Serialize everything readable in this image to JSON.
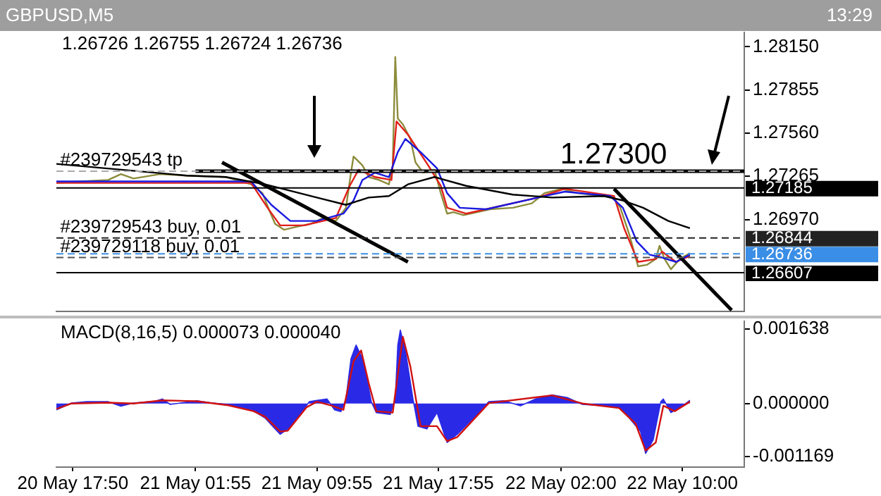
{
  "chart_data": [
    {
      "type": "line",
      "title": "GBPUSD,M5",
      "subtitle": "13:29",
      "xlim": [
        "--05-20T16:45",
        "--05-22T14:05"
      ],
      "ylim": [
        1.2634,
        1.2825
      ],
      "tick_labels": "y",
      "yticks": [
        {
          "value": 1.2815,
          "label": "1.28150"
        },
        {
          "value": 1.27855,
          "label": "1.27855"
        },
        {
          "value": 1.2756,
          "label": "1.27560"
        },
        {
          "value": 1.27265,
          "label": "1.27265"
        },
        {
          "value": 1.2697,
          "label": "1.26970"
        }
      ],
      "series": [
        {
          "color": "#8c8c3c",
          "x": [
            "--05-20T16:45",
            "--05-20T18:25",
            "--05-20T20:10",
            "--05-20T21:00",
            "--05-20T21:50",
            "--05-20T23:35",
            "--05-21T01:20",
            "--05-21T03:55",
            "--05-21T05:35",
            "--05-21T06:20",
            "--05-21T06:45",
            "--05-21T07:10",
            "--05-21T07:45",
            "--05-21T08:35",
            "--05-21T09:30",
            "--05-21T10:20",
            "--05-21T11:10",
            "--05-21T11:50",
            "--05-21T12:10",
            "--05-21T12:20",
            "--05-21T12:55",
            "--05-21T13:20",
            "--05-21T14:00",
            "--05-21T14:40",
            "--05-21T14:55",
            "--05-21T15:05",
            "--05-21T15:15",
            "--05-21T15:35",
            "--05-21T16:05",
            "--05-21T16:25",
            "--05-21T16:55",
            "--05-21T17:40",
            "--05-21T18:05",
            "--05-21T18:30",
            "--05-21T18:55",
            "--05-21T19:35",
            "--05-21T21:20",
            "--05-21T22:50",
            "--05-22T00:05",
            "--05-22T00:55",
            "--05-22T02:05",
            "--05-22T03:05",
            "--05-22T04:50",
            "--05-22T05:25",
            "--05-22T05:55",
            "--05-22T06:30",
            "--05-22T07:05",
            "--05-22T07:40",
            "--05-22T08:15",
            "--05-22T08:30",
            "--05-22T08:50",
            "--05-22T09:15",
            "--05-22T09:50",
            "--05-22T10:30"
          ],
          "values": [
            1.2722,
            1.2723,
            1.2724,
            1.2728,
            1.2725,
            1.2728,
            1.2727,
            1.2726,
            1.2721,
            1.2715,
            1.2704,
            1.2694,
            1.269,
            1.2692,
            1.2694,
            1.2698,
            1.2696,
            1.2705,
            1.2729,
            1.274,
            1.2734,
            1.2726,
            1.2724,
            1.2721,
            1.2734,
            1.2808,
            1.2766,
            1.2762,
            1.2752,
            1.2736,
            1.2729,
            1.2731,
            1.2715,
            1.2701,
            1.2702,
            1.27,
            1.2704,
            1.2705,
            1.2708,
            1.2715,
            1.2718,
            1.2715,
            1.2713,
            1.2713,
            1.2705,
            1.2687,
            1.2665,
            1.2666,
            1.267,
            1.2679,
            1.267,
            1.2663,
            1.267,
            1.2674
          ]
        },
        {
          "color": "#e0201a",
          "x": [
            "--05-20T16:45",
            "--05-21T05:35",
            "--05-21T06:40",
            "--05-21T07:30",
            "--05-21T09:05",
            "--05-21T11:10",
            "--05-21T12:05",
            "--05-21T12:40",
            "--05-21T13:45",
            "--05-21T14:50",
            "--05-21T15:10",
            "--05-21T15:55",
            "--05-21T17:15",
            "--05-21T18:05",
            "--05-21T18:30",
            "--05-21T19:45",
            "--05-22T00:30",
            "--05-22T02:15",
            "--05-22T05:30",
            "--05-22T06:10",
            "--05-22T07:05",
            "--05-22T08:15",
            "--05-22T08:40",
            "--05-22T09:35",
            "--05-22T10:30"
          ],
          "values": [
            1.2722,
            1.2722,
            1.2705,
            1.2693,
            1.2693,
            1.2698,
            1.272,
            1.2731,
            1.2726,
            1.2724,
            1.2764,
            1.2755,
            1.2734,
            1.272,
            1.2705,
            1.2701,
            1.2712,
            1.2718,
            1.2713,
            1.2691,
            1.2668,
            1.267,
            1.2675,
            1.2668,
            1.2672
          ]
        },
        {
          "color": "#1a1ae0",
          "x": [
            "--05-20T16:45",
            "--05-21T05:35",
            "--05-21T06:55",
            "--05-21T08:10",
            "--05-21T09:55",
            "--05-21T11:40",
            "--05-21T12:20",
            "--05-21T12:55",
            "--05-21T13:45",
            "--05-21T14:40",
            "--05-21T15:15",
            "--05-21T15:45",
            "--05-21T16:45",
            "--05-21T17:50",
            "--05-21T18:30",
            "--05-21T19:20",
            "--05-21T21:05",
            "--05-22T00:30",
            "--05-22T02:15",
            "--05-22T05:15",
            "--05-22T06:05",
            "--05-22T07:00",
            "--05-22T07:50",
            "--05-22T08:40",
            "--05-22T09:35",
            "--05-22T10:30"
          ],
          "values": [
            1.2723,
            1.2723,
            1.2707,
            1.2696,
            1.2696,
            1.2701,
            1.271,
            1.2724,
            1.2729,
            1.2726,
            1.2743,
            1.2752,
            1.2743,
            1.2732,
            1.2715,
            1.2705,
            1.2704,
            1.2712,
            1.2716,
            1.2713,
            1.2705,
            1.2682,
            1.2673,
            1.2671,
            1.2668,
            1.2673
          ]
        },
        {
          "color": "#000000",
          "x": [
            "--05-20T16:45",
            "--05-21T01:20",
            "--05-21T03:55",
            "--05-21T06:30",
            "--05-21T09:55",
            "--05-21T11:50",
            "--05-21T13:20",
            "--05-21T14:40",
            "--05-21T15:55",
            "--05-21T17:40",
            "--05-21T19:45",
            "--05-21T22:50",
            "--05-22T01:25",
            "--05-22T04:50",
            "--05-22T06:05",
            "--05-22T07:25",
            "--05-22T09:05",
            "--05-22T10:30"
          ],
          "values": [
            1.2735,
            1.2727,
            1.2726,
            1.2721,
            1.2712,
            1.2707,
            1.2712,
            1.2713,
            1.2721,
            1.2726,
            1.272,
            1.2714,
            1.2712,
            1.2713,
            1.271,
            1.2705,
            1.2696,
            1.2691
          ]
        },
        {
          "color": "#000000",
          "x": [
            "--05-21T03:40",
            "--05-21T15:55"
          ],
          "values": [
            1.2736,
            1.2668
          ]
        },
        {
          "color": "#000000",
          "x": [
            "--05-22T05:30",
            "--05-22T13:15"
          ],
          "values": [
            1.2718,
            1.2635
          ]
        },
        {
          "color": "#000000",
          "x": [
            "--05-21T01:55",
            "--05-22T14:05"
          ],
          "values": [
            1.273,
            1.273
          ]
        }
      ],
      "ref_lines": [
        {
          "axis": "y",
          "value": 1.273,
          "color": "#aaaaaa",
          "line_style": "dashed"
        },
        {
          "axis": "y",
          "value": 1.27185,
          "label": "1.27185",
          "color": "#000000"
        },
        {
          "axis": "y",
          "value": 1.26844,
          "label": "1.26844",
          "color": "#222222",
          "line_style": "dashed"
        },
        {
          "axis": "y",
          "value": 1.26736,
          "label": "1.26736",
          "color": "#3a8ee6",
          "line_style": "dashed"
        },
        {
          "axis": "y",
          "value": 1.2671,
          "color": "#555555",
          "line_style": "dashed"
        },
        {
          "axis": "y",
          "value": 1.26607,
          "label": "1.26607",
          "color": "#000000"
        }
      ],
      "annotations": [
        "1.26726 1.26755 1.26724 1.26736",
        "1.27300",
        {
          "text": "#239729543 tp",
          "x": "--05-20T17:00",
          "y": 1.273
        },
        {
          "text": "#239729543 buy, 0.01",
          "x": "--05-20T17:00",
          "y": 1.26844
        },
        {
          "text": "#239729118 buy, 0.01",
          "x": "--05-20T17:00",
          "y": 1.2671
        }
      ]
    },
    {
      "type": "area",
      "title": "MACD(8,16,5) 0.000073 0.000040",
      "xlim": [
        "--05-20T16:45",
        "--05-22T14:05"
      ],
      "ylim": [
        -0.0014,
        0.00182
      ],
      "xticks": [
        {
          "value": "--05-20T17:50",
          "label": "20 May 17:50"
        },
        {
          "value": "--05-21T01:55",
          "label": "21 May 01:55"
        },
        {
          "value": "--05-21T09:55",
          "label": "21 May 09:55"
        },
        {
          "value": "--05-21T17:55",
          "label": "21 May 17:55"
        },
        {
          "value": "--05-22T02:00",
          "label": "22 May 02:00"
        },
        {
          "value": "--05-22T10:00",
          "label": "22 May 10:00"
        }
      ],
      "yticks": [
        0.001638,
        {
          "value": 0,
          "label": "0.000000"
        },
        -0.001169
      ],
      "series": [
        {
          "color": "#2a2ae6",
          "x": [
            "--05-20T16:45",
            "--05-20T17:45",
            "--05-20T18:45",
            "--05-20T20:10",
            "--05-20T21:00",
            "--05-20T21:50",
            "--05-20T23:15",
            "--05-20T23:45",
            "--05-21T00:15",
            "--05-21T02:00",
            "--05-21T03:00",
            "--05-21T04:05",
            "--05-21T05:25",
            "--05-21T05:55",
            "--05-21T06:30",
            "--05-21T07:00",
            "--05-21T07:30",
            "--05-21T08:00",
            "--05-21T08:55",
            "--05-21T09:25",
            "--05-21T09:55",
            "--05-21T10:35",
            "--05-21T11:05",
            "--05-21T11:30",
            "--05-21T11:50",
            "--05-21T12:10",
            "--05-21T12:30",
            "--05-21T13:00",
            "--05-21T13:30",
            "--05-21T13:50",
            "--05-21T14:45",
            "--05-21T15:05",
            "--05-21T15:15",
            "--05-21T15:25",
            "--05-21T15:45",
            "--05-21T16:15",
            "--05-21T16:35",
            "--05-21T17:10",
            "--05-21T17:50",
            "--05-21T18:30",
            "--05-21T19:10",
            "--05-21T20:15",
            "--05-21T21:15",
            "--05-21T22:15",
            "--05-21T23:20",
            "--05-22T00:20",
            "--05-22T01:25",
            "--05-22T02:25",
            "--05-22T03:25",
            "--05-22T04:50",
            "--05-22T05:50",
            "--05-22T06:30",
            "--05-22T07:15",
            "--05-22T07:35",
            "--05-22T08:05",
            "--05-22T08:35",
            "--05-22T08:45",
            "--05-22T09:15",
            "--05-22T10:00",
            "--05-22T10:30"
          ],
          "values": [
            -0.00014,
            1e-05,
            4e-05,
            4e-05,
            -6e-05,
            1e-05,
            5e-05,
            0.0001,
            -2e-05,
            6e-05,
            1e-05,
            -2e-05,
            -0.00012,
            -0.0002,
            -0.00032,
            -0.0005,
            -0.00068,
            -0.00056,
            -0.0002,
            4e-05,
            7e-05,
            0.0001,
            -0.00014,
            -0.00018,
            0.0001,
            0.00099,
            0.00129,
            0.00093,
            4e-05,
            -0.0002,
            -0.00024,
            0.0001,
            0.00129,
            0.00162,
            0.00117,
            0.0001,
            -0.0005,
            -0.00056,
            -0.0002,
            -0.00086,
            -0.00068,
            -0.00032,
            4e-05,
            6e-05,
            -5e-05,
            0.0001,
            0.00019,
            0.00013,
            -2e-05,
            -5e-05,
            -8e-05,
            -0.00032,
            -0.00062,
            -0.0011,
            -0.0008,
            4e-05,
            0.0001,
            -0.0002,
            -6e-05,
            7e-05
          ]
        },
        {
          "type": "line",
          "color": "#d01010",
          "x": [
            "--05-20T16:45",
            "--05-20T17:45",
            "--05-20T20:10",
            "--05-20T21:50",
            "--05-20T23:45",
            "--05-21T02:00",
            "--05-21T04:05",
            "--05-21T05:45",
            "--05-21T06:30",
            "--05-21T07:30",
            "--05-21T08:00",
            "--05-21T09:15",
            "--05-21T09:55",
            "--05-21T10:55",
            "--05-21T11:40",
            "--05-21T12:20",
            "--05-21T12:50",
            "--05-21T13:20",
            "--05-21T13:50",
            "--05-21T14:55",
            "--05-21T15:35",
            "--05-21T16:05",
            "--05-21T16:45",
            "--05-21T17:50",
            "--05-21T18:30",
            "--05-21T19:10",
            "--05-21T21:15",
            "--05-22T01:25",
            "--05-22T03:25",
            "--05-22T05:50",
            "--05-22T06:55",
            "--05-22T07:35",
            "--05-22T08:15",
            "--05-22T08:45",
            "--05-22T09:30",
            "--05-22T10:30"
          ],
          "values": [
            -0.00012,
            0,
            2e-05,
            0,
            7e-05,
            5e-05,
            -4e-05,
            -0.00017,
            -0.00029,
            -0.00062,
            -0.0006,
            -8e-05,
            4e-05,
            -5e-05,
            -0.00014,
            0.00093,
            0.00117,
            0.00045,
            -0.00017,
            -0.0002,
            0.00147,
            0.00081,
            -0.0005,
            -0.0005,
            -0.00083,
            -0.00074,
            1e-05,
            0.00018,
            0,
            -0.0001,
            -0.00044,
            -0.00104,
            -0.00086,
            -5e-05,
            -0.00017,
            4e-05
          ]
        }
      ]
    }
  ]
}
